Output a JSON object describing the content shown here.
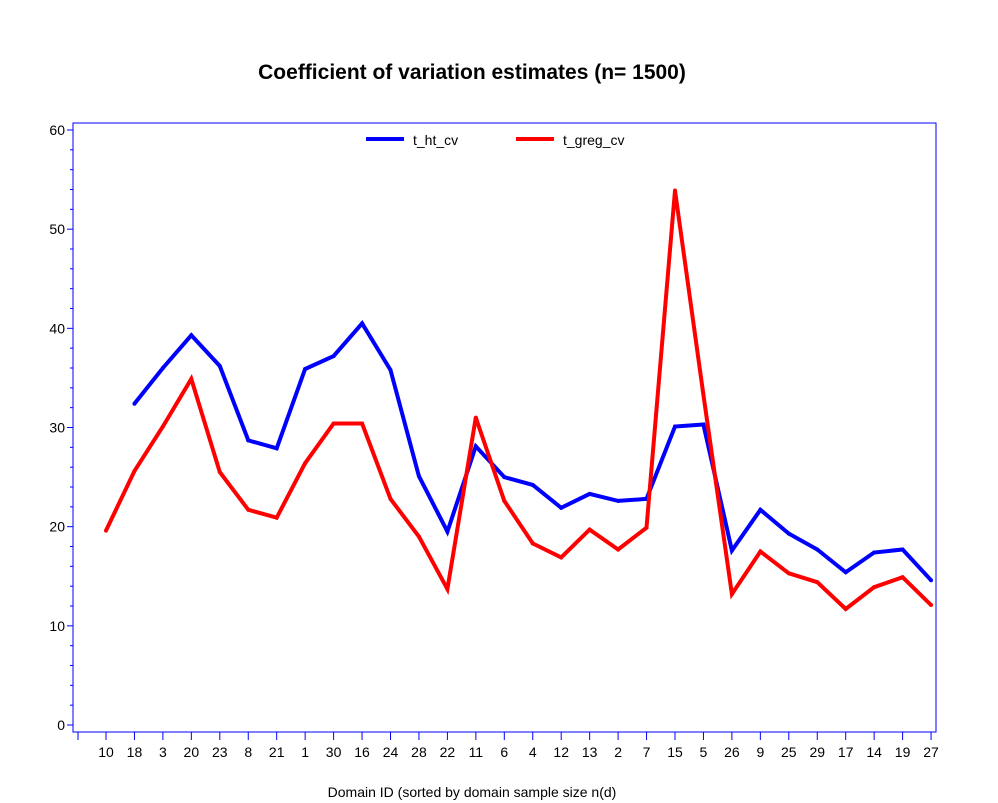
{
  "chart_data": {
    "type": "line",
    "title": "Coefficient of variation estimates (n= 1500)",
    "xlabel": "Domain ID (sorted by domain sample size n(d)",
    "ylabel": "",
    "ylim": [
      0,
      60
    ],
    "yticks": [
      0,
      10,
      20,
      30,
      40,
      50,
      60
    ],
    "categories": [
      "10",
      "18",
      "3",
      "20",
      "23",
      "8",
      "21",
      "1",
      "30",
      "16",
      "24",
      "28",
      "22",
      "11",
      "6",
      "4",
      "12",
      "13",
      "2",
      "7",
      "15",
      "5",
      "26",
      "9",
      "25",
      "29",
      "17",
      "14",
      "19",
      "27"
    ],
    "grid": false,
    "legend_position": "top-center",
    "series": [
      {
        "name": "t_ht_cv",
        "color": "#0000ff",
        "values": [
          null,
          32.4,
          36.0,
          39.3,
          36.2,
          28.7,
          27.9,
          35.9,
          37.2,
          40.5,
          35.8,
          25.1,
          19.5,
          28.1,
          25.0,
          24.2,
          21.9,
          23.3,
          22.6,
          22.8,
          30.1,
          30.3,
          17.6,
          21.7,
          19.3,
          17.7,
          15.4,
          17.4,
          17.7,
          14.6
        ]
      },
      {
        "name": "t_greg_cv",
        "color": "#ff0000",
        "values": [
          19.6,
          25.6,
          30.1,
          34.9,
          25.5,
          21.7,
          20.9,
          26.4,
          30.4,
          30.4,
          22.8,
          19.0,
          13.7,
          31.0,
          22.6,
          18.3,
          16.9,
          19.7,
          17.7,
          19.9,
          53.9,
          33.3,
          13.2,
          17.5,
          15.3,
          14.4,
          11.7,
          13.9,
          14.9,
          12.1
        ]
      }
    ]
  }
}
